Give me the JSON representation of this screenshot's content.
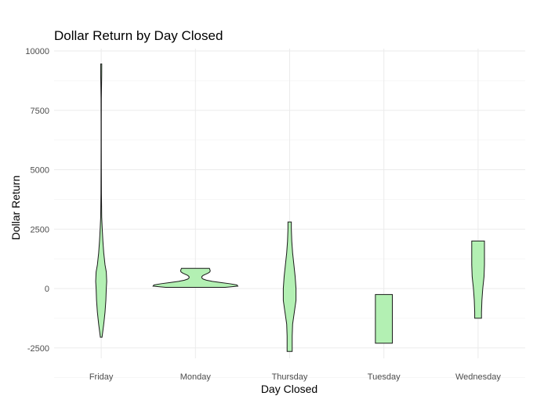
{
  "chart_data": {
    "type": "violin",
    "title": "Dollar Return by Day Closed",
    "xlabel": "Day Closed",
    "ylabel": "Dollar Return",
    "ylim": [
      -3000,
      10000
    ],
    "yticks": [
      -2500,
      0,
      2500,
      5000,
      7500,
      10000
    ],
    "grid": true,
    "fill_color": "#b3f0b3",
    "stroke_color": "#1a1a1a",
    "categories": [
      "Friday",
      "Monday",
      "Thursday",
      "Tuesday",
      "Wednesday"
    ],
    "violins": [
      {
        "category": "Friday",
        "min": -2050,
        "max": 9450,
        "profile": [
          [
            -2050,
            0.02
          ],
          [
            -1500,
            0.06
          ],
          [
            -1000,
            0.09
          ],
          [
            -500,
            0.11
          ],
          [
            0,
            0.12
          ],
          [
            300,
            0.13
          ],
          [
            700,
            0.12
          ],
          [
            1000,
            0.09
          ],
          [
            1500,
            0.06
          ],
          [
            2000,
            0.04
          ],
          [
            2500,
            0.025
          ],
          [
            3000,
            0.012
          ],
          [
            4000,
            0.006
          ],
          [
            5000,
            0.004
          ],
          [
            6000,
            0.003
          ],
          [
            7000,
            0.003
          ],
          [
            8000,
            0.004
          ],
          [
            8500,
            0.008
          ],
          [
            9000,
            0.012
          ],
          [
            9450,
            0.013
          ]
        ]
      },
      {
        "category": "Monday",
        "min": 50,
        "max": 850,
        "profile": [
          [
            50,
            0.7
          ],
          [
            100,
            1.0
          ],
          [
            150,
            0.98
          ],
          [
            200,
            0.82
          ],
          [
            250,
            0.6
          ],
          [
            300,
            0.4
          ],
          [
            350,
            0.26
          ],
          [
            400,
            0.18
          ],
          [
            450,
            0.15
          ],
          [
            500,
            0.15
          ],
          [
            550,
            0.18
          ],
          [
            600,
            0.24
          ],
          [
            650,
            0.3
          ],
          [
            700,
            0.34
          ],
          [
            750,
            0.35
          ],
          [
            800,
            0.34
          ],
          [
            850,
            0.33
          ]
        ]
      },
      {
        "category": "Thursday",
        "min": -2650,
        "max": 2800,
        "profile": [
          [
            -2650,
            0.06
          ],
          [
            -2000,
            0.06
          ],
          [
            -1500,
            0.07
          ],
          [
            -1000,
            0.11
          ],
          [
            -500,
            0.15
          ],
          [
            0,
            0.15
          ],
          [
            500,
            0.13
          ],
          [
            1000,
            0.1
          ],
          [
            1500,
            0.07
          ],
          [
            2000,
            0.05
          ],
          [
            2500,
            0.04
          ],
          [
            2800,
            0.04
          ]
        ]
      },
      {
        "category": "Tuesday",
        "min": -2300,
        "max": -250,
        "profile": [
          [
            -2300,
            0.2
          ],
          [
            -2000,
            0.2
          ],
          [
            -1500,
            0.2
          ],
          [
            -1000,
            0.2
          ],
          [
            -500,
            0.2
          ],
          [
            -250,
            0.2
          ]
        ]
      },
      {
        "category": "Wednesday",
        "min": -1250,
        "max": 2000,
        "profile": [
          [
            -1250,
            0.08
          ],
          [
            -1000,
            0.08
          ],
          [
            -500,
            0.09
          ],
          [
            0,
            0.11
          ],
          [
            500,
            0.14
          ],
          [
            1000,
            0.15
          ],
          [
            1500,
            0.15
          ],
          [
            2000,
            0.15
          ]
        ]
      }
    ]
  }
}
